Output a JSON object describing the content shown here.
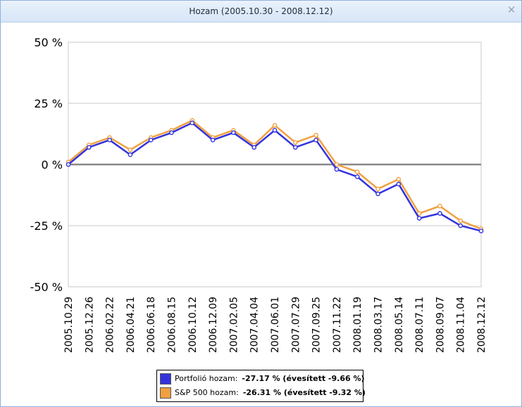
{
  "window": {
    "title": "Hozam (2005.10.30 - 2008.12.12)",
    "close_icon": "close-icon"
  },
  "legend": {
    "portfolio_label": "Portfolió hozam:",
    "portfolio_value": "-27.17 % (évesített -9.66 %)",
    "sp500_label": "S&P 500 hozam:",
    "sp500_value": "-26.31 % (évesített -9.32 %)"
  },
  "colors": {
    "portfolio": "#3333dd",
    "sp500": "#f0a040",
    "zero_line": "#888888",
    "grid": "#c8c8c8"
  },
  "chart_data": {
    "type": "line",
    "title": "Hozam (2005.10.30 - 2008.12.12)",
    "xlabel": "",
    "ylabel": "",
    "ylim": [
      -50,
      50
    ],
    "y_ticks": [
      "50 %",
      "25 %",
      "0 %",
      "-25 %",
      "-50 %"
    ],
    "y_tick_values": [
      50,
      25,
      0,
      -25,
      -50
    ],
    "grid": true,
    "legend_position": "bottom",
    "categories": [
      "2005.10.29",
      "2005.12.26",
      "2006.02.22",
      "2006.04.21",
      "2006.06.18",
      "2006.08.15",
      "2006.10.12",
      "2006.12.09",
      "2007.02.05",
      "2007.04.04",
      "2007.06.01",
      "2007.07.29",
      "2007.09.25",
      "2007.11.22",
      "2008.01.19",
      "2008.03.17",
      "2008.05.14",
      "2008.07.11",
      "2008.09.07",
      "2008.11.04",
      "2008.12.12"
    ],
    "series": [
      {
        "name": "Portfolió hozam",
        "values": [
          0,
          7,
          10,
          4,
          10,
          13,
          17,
          10,
          13,
          7,
          14,
          7,
          10,
          -2,
          -5,
          -12,
          -8,
          -22,
          -20,
          -25,
          -27.17
        ]
      },
      {
        "name": "S&P 500 hozam",
        "values": [
          1,
          8,
          11,
          6,
          11,
          14,
          18,
          11,
          14,
          8,
          16,
          9,
          12,
          0,
          -3,
          -10,
          -6,
          -20,
          -17,
          -23,
          -26.31
        ]
      }
    ]
  }
}
